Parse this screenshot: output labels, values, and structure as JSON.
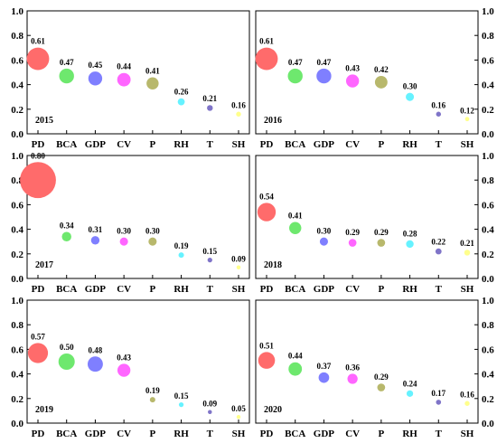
{
  "colors": {
    "PD": "#ff6b6b",
    "BCA": "#6ee86e",
    "GDP": "#7f7fff",
    "CV": "#ff66ff",
    "P": "#b8b86c",
    "RH": "#66f2ff",
    "T": "#7f74c8",
    "SH": "#ffff8c"
  },
  "chart_data": [
    {
      "type": "scatter",
      "label": "2015",
      "categories": [
        "PD",
        "BCA",
        "GDP",
        "CV",
        "P",
        "RH",
        "T",
        "SH"
      ],
      "values": [
        0.61,
        0.47,
        0.45,
        0.44,
        0.41,
        0.26,
        0.21,
        0.16
      ],
      "value_labels": [
        "0.61",
        "0.47",
        "0.45",
        "0.44",
        "0.41",
        "0.26",
        "0.21",
        "0.16"
      ],
      "ylim": [
        0,
        1.0
      ],
      "yticks": [
        "0.0",
        "0.2",
        "0.4",
        "0.6",
        "0.8",
        "1.0"
      ],
      "y_axis_side": "left"
    },
    {
      "type": "scatter",
      "label": "2016",
      "categories": [
        "PD",
        "BCA",
        "GDP",
        "CV",
        "P",
        "RH",
        "T",
        "SH"
      ],
      "values": [
        0.61,
        0.47,
        0.47,
        0.43,
        0.42,
        0.3,
        0.16,
        0.12
      ],
      "value_labels": [
        "0.61",
        "0.47",
        "0.47",
        "0.43",
        "0.42",
        "0.30",
        "0.16",
        "0.12"
      ],
      "ylim": [
        0,
        1.0
      ],
      "yticks": [
        "0.0",
        "0.2",
        "0.4",
        "0.6",
        "0.8",
        "1.0"
      ],
      "y_axis_side": "right"
    },
    {
      "type": "scatter",
      "label": "2017",
      "categories": [
        "PD",
        "BCA",
        "GDP",
        "CV",
        "P",
        "RH",
        "T",
        "SH"
      ],
      "values": [
        0.8,
        0.34,
        0.31,
        0.3,
        0.3,
        0.19,
        0.15,
        0.09
      ],
      "value_labels": [
        "0.80",
        "0.34",
        "0.31",
        "0.30",
        "0.30",
        "0.19",
        "0.15",
        "0.09"
      ],
      "ylim": [
        0,
        1.0
      ],
      "yticks": [
        "0.0",
        "0.2",
        "0.4",
        "0.6",
        "0.8",
        "1.0"
      ],
      "y_axis_side": "left"
    },
    {
      "type": "scatter",
      "label": "2018",
      "categories": [
        "PD",
        "BCA",
        "GDP",
        "CV",
        "P",
        "RH",
        "T",
        "SH"
      ],
      "values": [
        0.54,
        0.41,
        0.3,
        0.29,
        0.29,
        0.28,
        0.22,
        0.21
      ],
      "value_labels": [
        "0.54",
        "0.41",
        "0.30",
        "0.29",
        "0.29",
        "0.28",
        "0.22",
        "0.21"
      ],
      "ylim": [
        0,
        1.0
      ],
      "yticks": [
        "0.0",
        "0.2",
        "0.4",
        "0.6",
        "0.8",
        "1.0"
      ],
      "y_axis_side": "right"
    },
    {
      "type": "scatter",
      "label": "2019",
      "categories": [
        "PD",
        "BCA",
        "GDP",
        "CV",
        "P",
        "RH",
        "T",
        "SH"
      ],
      "values": [
        0.57,
        0.5,
        0.48,
        0.43,
        0.19,
        0.15,
        0.09,
        0.05
      ],
      "value_labels": [
        "0.57",
        "0.50",
        "0.48",
        "0.43",
        "0.19",
        "0.15",
        "0.09",
        "0.05"
      ],
      "ylim": [
        0,
        1.0
      ],
      "yticks": [
        "0.0",
        "0.2",
        "0.4",
        "0.6",
        "0.8",
        "1.0"
      ],
      "y_axis_side": "left"
    },
    {
      "type": "scatter",
      "label": "2020",
      "categories": [
        "PD",
        "BCA",
        "GDP",
        "CV",
        "P",
        "RH",
        "T",
        "SH"
      ],
      "values": [
        0.51,
        0.44,
        0.37,
        0.36,
        0.29,
        0.24,
        0.17,
        0.16
      ],
      "value_labels": [
        "0.51",
        "0.44",
        "0.37",
        "0.36",
        "0.29",
        "0.24",
        "0.17",
        "0.16"
      ],
      "ylim": [
        0,
        1.0
      ],
      "yticks": [
        "0.0",
        "0.2",
        "0.4",
        "0.6",
        "0.8",
        "1.0"
      ],
      "y_axis_side": "right"
    }
  ]
}
